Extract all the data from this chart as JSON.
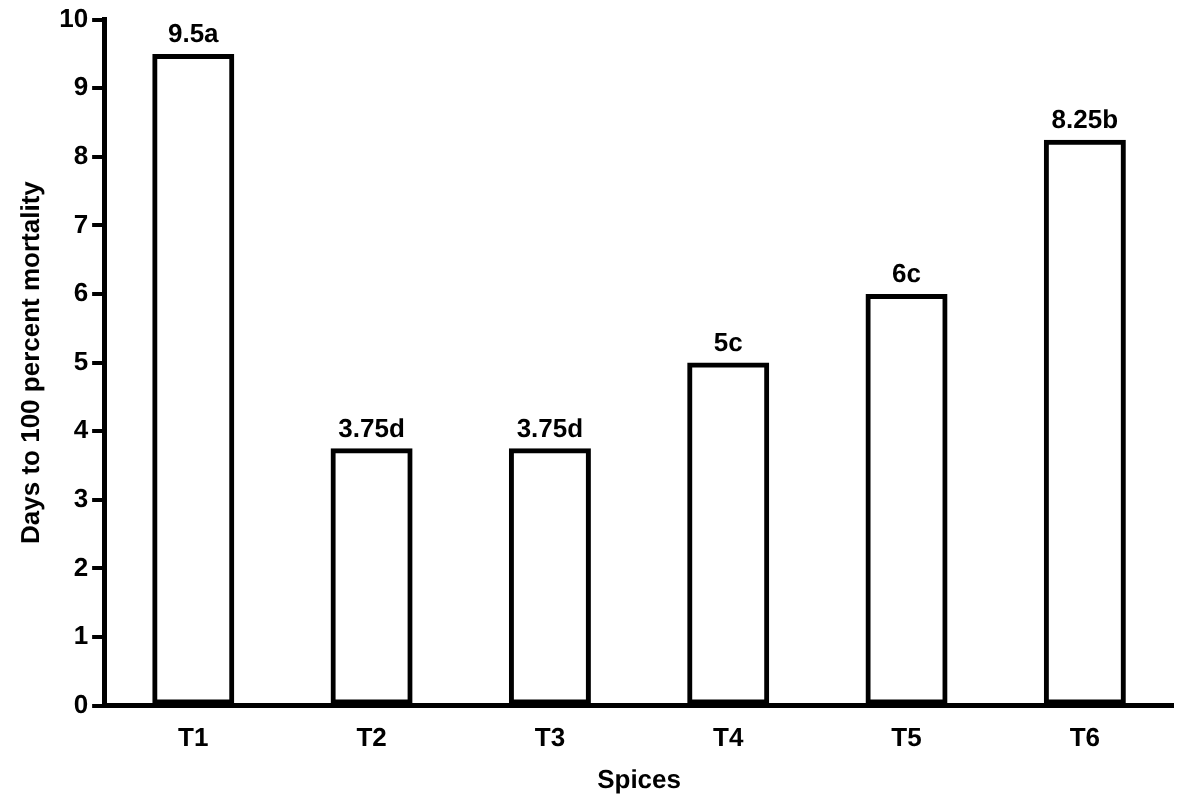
{
  "chart_data": {
    "type": "bar",
    "xlabel": "Spices",
    "ylabel": "Days to 100 percent mortality",
    "categories": [
      "T1",
      "T2",
      "T3",
      "T4",
      "T5",
      "T6"
    ],
    "values": [
      9.5,
      3.75,
      3.75,
      5,
      6,
      8.25
    ],
    "value_labels": [
      "9.5a",
      "3.75d",
      "3.75d",
      "5c",
      "6c",
      "8.25b"
    ],
    "color": "#000000",
    "ylim": [
      0,
      10
    ],
    "yticks": [
      0,
      1,
      2,
      3,
      4,
      5,
      6,
      7,
      8,
      9,
      10
    ],
    "grid": false,
    "legend": false
  }
}
